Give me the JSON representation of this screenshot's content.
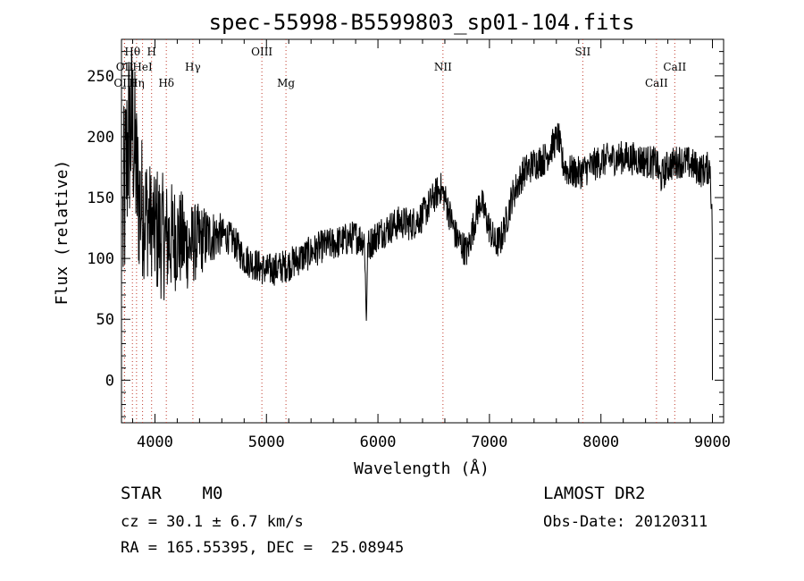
{
  "chart_data": {
    "type": "line",
    "title": "spec-55998-B5599803_sp01-104.fits",
    "xlabel": "Wavelength (Å)",
    "ylabel": "Flux (relative)",
    "xlim": [
      3700,
      9100
    ],
    "ylim": [
      -35,
      280
    ],
    "xticks": [
      4000,
      5000,
      6000,
      7000,
      8000,
      9000
    ],
    "yticks": [
      0,
      50,
      100,
      150,
      200,
      250
    ],
    "line_color": "#000000",
    "marker_color": "#c0392b",
    "lines": [
      {
        "label": "Hθ",
        "x": 3798,
        "row": 1
      },
      {
        "label": "H",
        "x": 3970,
        "row": 1
      },
      {
        "label": "OIII",
        "x": 4959,
        "row": 1
      },
      {
        "label": "SII",
        "x": 7837,
        "row": 1
      },
      {
        "label": "OII",
        "x": 3727,
        "row": 2
      },
      {
        "label": "HeI",
        "x": 3889,
        "row": 2
      },
      {
        "label": "Hγ",
        "x": 4340,
        "row": 2
      },
      {
        "label": "NII",
        "x": 6583,
        "row": 2
      },
      {
        "label": "CaII",
        "x": 8662,
        "row": 2
      },
      {
        "label": "OIII",
        "x": 3727,
        "row": 3
      },
      {
        "label": "Hη",
        "x": 3835,
        "row": 3
      },
      {
        "label": "Hδ",
        "x": 4102,
        "row": 3
      },
      {
        "label": "Mg",
        "x": 5175,
        "row": 3
      },
      {
        "label": "CaII",
        "x": 8498,
        "row": 3
      }
    ],
    "spectrum_anchors": {
      "x": [
        3710,
        3760,
        3800,
        3850,
        3900,
        4000,
        4100,
        4200,
        4300,
        4400,
        4500,
        4600,
        4700,
        4800,
        4900,
        5000,
        5100,
        5200,
        5300,
        5400,
        5500,
        5600,
        5700,
        5800,
        5880,
        5895,
        5910,
        6000,
        6100,
        6200,
        6300,
        6400,
        6500,
        6560,
        6600,
        6700,
        6760,
        6800,
        6860,
        6920,
        7000,
        7050,
        7100,
        7150,
        7200,
        7300,
        7400,
        7500,
        7580,
        7620,
        7650,
        7700,
        7800,
        7900,
        8000,
        8100,
        8200,
        8300,
        8400,
        8500,
        8530,
        8600,
        8700,
        8800,
        8900,
        8980,
        9000
      ],
      "y": [
        120,
        200,
        210,
        150,
        140,
        125,
        115,
        118,
        110,
        115,
        118,
        120,
        115,
        100,
        95,
        90,
        92,
        95,
        100,
        105,
        110,
        112,
        115,
        118,
        115,
        50,
        110,
        120,
        125,
        130,
        128,
        135,
        150,
        158,
        150,
        118,
        110,
        105,
        128,
        148,
        125,
        112,
        115,
        130,
        150,
        170,
        178,
        182,
        195,
        200,
        180,
        172,
        170,
        175,
        180,
        182,
        183,
        182,
        180,
        178,
        165,
        176,
        180,
        178,
        172,
        175,
        120
      ]
    },
    "noise_amplitude_blue": 90,
    "noise_amplitude_red": 14
  },
  "footer": {
    "object_class": "STAR    M0",
    "survey": "LAMOST DR2",
    "redshift": "cz = 30.1 ± 6.7 km/s",
    "obs_date": "Obs-Date: 20120311",
    "coords": "RA = 165.55395, DEC =  25.08945"
  }
}
